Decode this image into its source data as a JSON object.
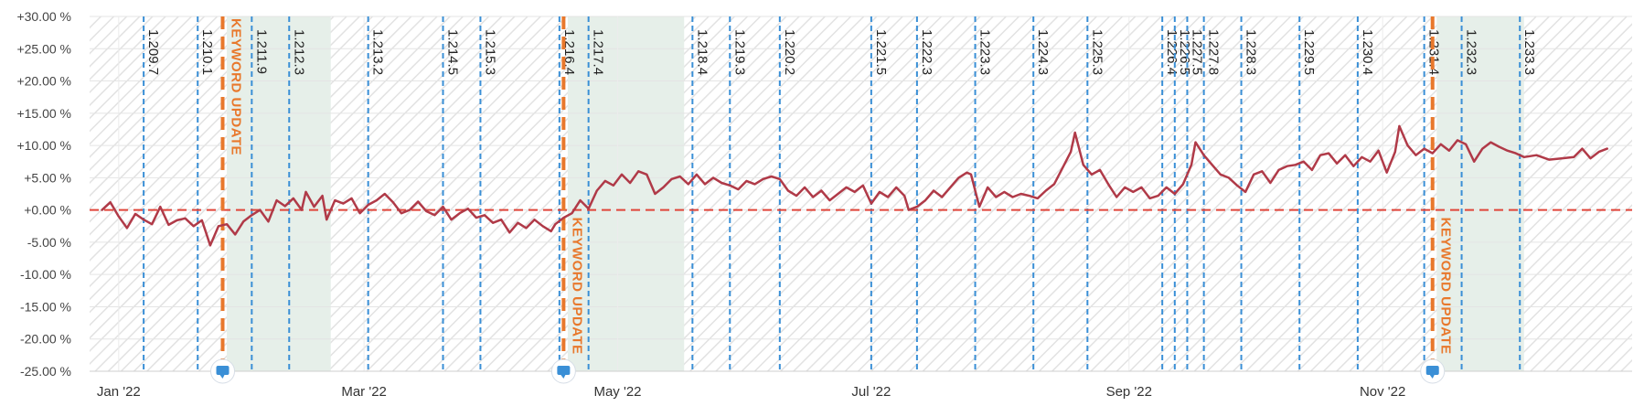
{
  "chart_data": {
    "type": "line",
    "title": "",
    "xlabel": "",
    "ylabel": "",
    "ylim": [
      -25,
      30
    ],
    "y_ticks": [
      "+30.00 %",
      "+25.00 %",
      "+20.00 %",
      "+15.00 %",
      "+10.00 %",
      "+5.00 %",
      "+0.00 %",
      "-5.00 %",
      "-10.00 %",
      "-15.00 %",
      "-20.00 %",
      "-25.00 %"
    ],
    "x_ticks": [
      {
        "date": "2022-01-01",
        "label": "Jan '22"
      },
      {
        "date": "2022-03-01",
        "label": "Mar '22"
      },
      {
        "date": "2022-05-01",
        "label": "May '22"
      },
      {
        "date": "2022-07-01",
        "label": "Jul '22"
      },
      {
        "date": "2022-09-01",
        "label": "Sep '22"
      },
      {
        "date": "2022-11-01",
        "label": "Nov '22"
      }
    ],
    "xlim": [
      "2021-12-25",
      "2022-12-31"
    ],
    "grid": true,
    "baseline": 0,
    "colors": {
      "line": "#b03a48",
      "baseline": "#e0453a",
      "version": "#3a8fd6",
      "event": "#e8782c",
      "band": "#e6efe9"
    },
    "versions": [
      {
        "date": "2022-01-07",
        "label": "1.209.7"
      },
      {
        "date": "2022-01-20",
        "label": "1.210.1"
      },
      {
        "date": "2022-02-02",
        "label": "1.211.9"
      },
      {
        "date": "2022-02-11",
        "label": "1.212.3"
      },
      {
        "date": "2022-03-02",
        "label": "1.213.2"
      },
      {
        "date": "2022-03-20",
        "label": "1.214.5"
      },
      {
        "date": "2022-03-29",
        "label": "1.215.3"
      },
      {
        "date": "2022-04-17",
        "label": "1.216.4"
      },
      {
        "date": "2022-04-24",
        "label": "1.217.4"
      },
      {
        "date": "2022-05-19",
        "label": "1.218.4"
      },
      {
        "date": "2022-05-28",
        "label": "1.219.3"
      },
      {
        "date": "2022-06-09",
        "label": "1.220.2"
      },
      {
        "date": "2022-07-01",
        "label": "1.221.5"
      },
      {
        "date": "2022-07-12",
        "label": "1.222.3"
      },
      {
        "date": "2022-07-26",
        "label": "1.223.3"
      },
      {
        "date": "2022-08-09",
        "label": "1.224.3"
      },
      {
        "date": "2022-08-22",
        "label": "1.225.3"
      },
      {
        "date": "2022-09-09",
        "label": "1.226.4"
      },
      {
        "date": "2022-09-12",
        "label": "1.226.5"
      },
      {
        "date": "2022-09-15",
        "label": "1.227.5"
      },
      {
        "date": "2022-09-19",
        "label": "1.227.8"
      },
      {
        "date": "2022-09-28",
        "label": "1.228.3"
      },
      {
        "date": "2022-10-12",
        "label": "1.229.5"
      },
      {
        "date": "2022-10-26",
        "label": "1.230.4"
      },
      {
        "date": "2022-11-11",
        "label": "1.231.4"
      },
      {
        "date": "2022-11-20",
        "label": "1.232.3"
      },
      {
        "date": "2022-12-04",
        "label": "1.233.3"
      }
    ],
    "events": [
      {
        "date": "2022-01-26",
        "label": "KEYWORD UPDATE",
        "label_position": "top"
      },
      {
        "date": "2022-04-18",
        "label": "KEYWORD UPDATE",
        "label_position": "bottom"
      },
      {
        "date": "2022-11-13",
        "label": "KEYWORD UPDATE",
        "label_position": "bottom"
      }
    ],
    "bands": [
      {
        "start": "2022-01-27",
        "end": "2022-02-21"
      },
      {
        "start": "2022-04-19",
        "end": "2022-05-17"
      },
      {
        "start": "2022-11-14",
        "end": "2022-12-05"
      }
    ],
    "series": [
      {
        "points": [
          [
            "2021-12-28",
            0.0
          ],
          [
            "2021-12-30",
            1.2
          ],
          [
            "2022-01-01",
            -1.0
          ],
          [
            "2022-01-03",
            -2.8
          ],
          [
            "2022-01-05",
            -0.6
          ],
          [
            "2022-01-07",
            -1.5
          ],
          [
            "2022-01-09",
            -2.2
          ],
          [
            "2022-01-11",
            0.5
          ],
          [
            "2022-01-13",
            -2.3
          ],
          [
            "2022-01-15",
            -1.6
          ],
          [
            "2022-01-17",
            -1.3
          ],
          [
            "2022-01-19",
            -2.5
          ],
          [
            "2022-01-21",
            -1.6
          ],
          [
            "2022-01-22",
            -3.5
          ],
          [
            "2022-01-23",
            -5.5
          ],
          [
            "2022-01-25",
            -2.5
          ],
          [
            "2022-01-27",
            -2.2
          ],
          [
            "2022-01-29",
            -3.8
          ],
          [
            "2022-01-31",
            -1.8
          ],
          [
            "2022-02-02",
            -0.8
          ],
          [
            "2022-02-04",
            0.0
          ],
          [
            "2022-02-06",
            -1.8
          ],
          [
            "2022-02-08",
            1.5
          ],
          [
            "2022-02-10",
            0.6
          ],
          [
            "2022-02-12",
            1.8
          ],
          [
            "2022-02-14",
            0.0
          ],
          [
            "2022-02-15",
            2.8
          ],
          [
            "2022-02-17",
            0.5
          ],
          [
            "2022-02-19",
            2.2
          ],
          [
            "2022-02-20",
            -1.5
          ],
          [
            "2022-02-22",
            1.5
          ],
          [
            "2022-02-24",
            1.0
          ],
          [
            "2022-02-26",
            1.8
          ],
          [
            "2022-02-28",
            -0.5
          ],
          [
            "2022-03-02",
            0.8
          ],
          [
            "2022-03-04",
            1.5
          ],
          [
            "2022-03-06",
            2.5
          ],
          [
            "2022-03-08",
            1.2
          ],
          [
            "2022-03-10",
            -0.5
          ],
          [
            "2022-03-12",
            0.0
          ],
          [
            "2022-03-14",
            1.3
          ],
          [
            "2022-03-16",
            -0.2
          ],
          [
            "2022-03-18",
            -0.8
          ],
          [
            "2022-03-20",
            0.5
          ],
          [
            "2022-03-22",
            -1.5
          ],
          [
            "2022-03-24",
            -0.5
          ],
          [
            "2022-03-26",
            0.2
          ],
          [
            "2022-03-28",
            -1.2
          ],
          [
            "2022-03-30",
            -0.8
          ],
          [
            "2022-04-01",
            -2.0
          ],
          [
            "2022-04-03",
            -1.5
          ],
          [
            "2022-04-05",
            -3.5
          ],
          [
            "2022-04-07",
            -2.0
          ],
          [
            "2022-04-09",
            -2.8
          ],
          [
            "2022-04-11",
            -1.5
          ],
          [
            "2022-04-13",
            -2.5
          ],
          [
            "2022-04-15",
            -3.3
          ],
          [
            "2022-04-16",
            -2.2
          ],
          [
            "2022-04-18",
            -1.2
          ],
          [
            "2022-04-20",
            -0.5
          ],
          [
            "2022-04-22",
            1.5
          ],
          [
            "2022-04-24",
            0.2
          ],
          [
            "2022-04-26",
            3.0
          ],
          [
            "2022-04-28",
            4.5
          ],
          [
            "2022-04-30",
            3.8
          ],
          [
            "2022-05-02",
            5.5
          ],
          [
            "2022-05-04",
            4.2
          ],
          [
            "2022-05-06",
            6.0
          ],
          [
            "2022-05-08",
            5.5
          ],
          [
            "2022-05-10",
            2.5
          ],
          [
            "2022-05-12",
            3.5
          ],
          [
            "2022-05-14",
            4.8
          ],
          [
            "2022-05-16",
            5.2
          ],
          [
            "2022-05-18",
            4.0
          ],
          [
            "2022-05-20",
            5.5
          ],
          [
            "2022-05-22",
            4.0
          ],
          [
            "2022-05-24",
            5.0
          ],
          [
            "2022-05-26",
            4.2
          ],
          [
            "2022-05-28",
            3.8
          ],
          [
            "2022-05-30",
            3.2
          ],
          [
            "2022-06-01",
            4.5
          ],
          [
            "2022-06-03",
            4.0
          ],
          [
            "2022-06-05",
            4.8
          ],
          [
            "2022-06-07",
            5.2
          ],
          [
            "2022-06-09",
            4.8
          ],
          [
            "2022-06-11",
            3.0
          ],
          [
            "2022-06-13",
            2.2
          ],
          [
            "2022-06-15",
            3.5
          ],
          [
            "2022-06-17",
            2.0
          ],
          [
            "2022-06-19",
            3.0
          ],
          [
            "2022-06-21",
            1.5
          ],
          [
            "2022-06-23",
            2.5
          ],
          [
            "2022-06-25",
            3.5
          ],
          [
            "2022-06-27",
            2.8
          ],
          [
            "2022-06-29",
            3.8
          ],
          [
            "2022-07-01",
            1.0
          ],
          [
            "2022-07-03",
            2.8
          ],
          [
            "2022-07-05",
            2.0
          ],
          [
            "2022-07-07",
            3.5
          ],
          [
            "2022-07-09",
            2.2
          ],
          [
            "2022-07-10",
            0.0
          ],
          [
            "2022-07-12",
            0.5
          ],
          [
            "2022-07-14",
            1.5
          ],
          [
            "2022-07-16",
            3.0
          ],
          [
            "2022-07-18",
            2.0
          ],
          [
            "2022-07-20",
            3.5
          ],
          [
            "2022-07-22",
            5.0
          ],
          [
            "2022-07-24",
            5.8
          ],
          [
            "2022-07-25",
            5.5
          ],
          [
            "2022-07-27",
            0.5
          ],
          [
            "2022-07-29",
            3.5
          ],
          [
            "2022-07-31",
            2.0
          ],
          [
            "2022-08-02",
            2.8
          ],
          [
            "2022-08-04",
            2.0
          ],
          [
            "2022-08-06",
            2.5
          ],
          [
            "2022-08-08",
            2.2
          ],
          [
            "2022-08-10",
            1.8
          ],
          [
            "2022-08-12",
            3.0
          ],
          [
            "2022-08-14",
            4.0
          ],
          [
            "2022-08-16",
            6.5
          ],
          [
            "2022-08-18",
            9.0
          ],
          [
            "2022-08-19",
            12.0
          ],
          [
            "2022-08-21",
            7.0
          ],
          [
            "2022-08-23",
            5.5
          ],
          [
            "2022-08-25",
            6.2
          ],
          [
            "2022-08-27",
            4.0
          ],
          [
            "2022-08-29",
            2.0
          ],
          [
            "2022-08-31",
            3.5
          ],
          [
            "2022-09-02",
            2.8
          ],
          [
            "2022-09-04",
            3.5
          ],
          [
            "2022-09-06",
            1.8
          ],
          [
            "2022-09-08",
            2.2
          ],
          [
            "2022-09-10",
            3.5
          ],
          [
            "2022-09-12",
            2.5
          ],
          [
            "2022-09-14",
            4.0
          ],
          [
            "2022-09-16",
            7.0
          ],
          [
            "2022-09-17",
            10.5
          ],
          [
            "2022-09-19",
            8.5
          ],
          [
            "2022-09-21",
            7.0
          ],
          [
            "2022-09-23",
            5.5
          ],
          [
            "2022-09-25",
            5.0
          ],
          [
            "2022-09-27",
            3.8
          ],
          [
            "2022-09-29",
            2.8
          ],
          [
            "2022-10-01",
            5.5
          ],
          [
            "2022-10-03",
            6.0
          ],
          [
            "2022-10-05",
            4.2
          ],
          [
            "2022-10-07",
            6.2
          ],
          [
            "2022-10-09",
            6.8
          ],
          [
            "2022-10-11",
            7.0
          ],
          [
            "2022-10-13",
            7.5
          ],
          [
            "2022-10-15",
            6.2
          ],
          [
            "2022-10-17",
            8.5
          ],
          [
            "2022-10-19",
            8.8
          ],
          [
            "2022-10-21",
            7.2
          ],
          [
            "2022-10-23",
            8.5
          ],
          [
            "2022-10-25",
            6.8
          ],
          [
            "2022-10-27",
            8.2
          ],
          [
            "2022-10-29",
            7.5
          ],
          [
            "2022-10-31",
            9.2
          ],
          [
            "2022-11-02",
            5.8
          ],
          [
            "2022-11-04",
            9.0
          ],
          [
            "2022-11-05",
            13.0
          ],
          [
            "2022-11-07",
            10.0
          ],
          [
            "2022-11-09",
            8.5
          ],
          [
            "2022-11-11",
            9.5
          ],
          [
            "2022-11-13",
            8.8
          ],
          [
            "2022-11-15",
            10.2
          ],
          [
            "2022-11-17",
            9.2
          ],
          [
            "2022-11-19",
            10.8
          ],
          [
            "2022-11-21",
            10.2
          ],
          [
            "2022-11-23",
            7.5
          ],
          [
            "2022-11-25",
            9.5
          ],
          [
            "2022-11-27",
            10.5
          ],
          [
            "2022-11-29",
            9.8
          ],
          [
            "2022-12-01",
            9.2
          ],
          [
            "2022-12-03",
            8.8
          ],
          [
            "2022-12-05",
            8.2
          ],
          [
            "2022-12-08",
            8.5
          ],
          [
            "2022-12-11",
            7.8
          ],
          [
            "2022-12-14",
            8.0
          ],
          [
            "2022-12-17",
            8.2
          ],
          [
            "2022-12-19",
            9.5
          ],
          [
            "2022-12-21",
            8.0
          ],
          [
            "2022-12-23",
            9.0
          ],
          [
            "2022-12-25",
            9.5
          ]
        ]
      }
    ]
  }
}
